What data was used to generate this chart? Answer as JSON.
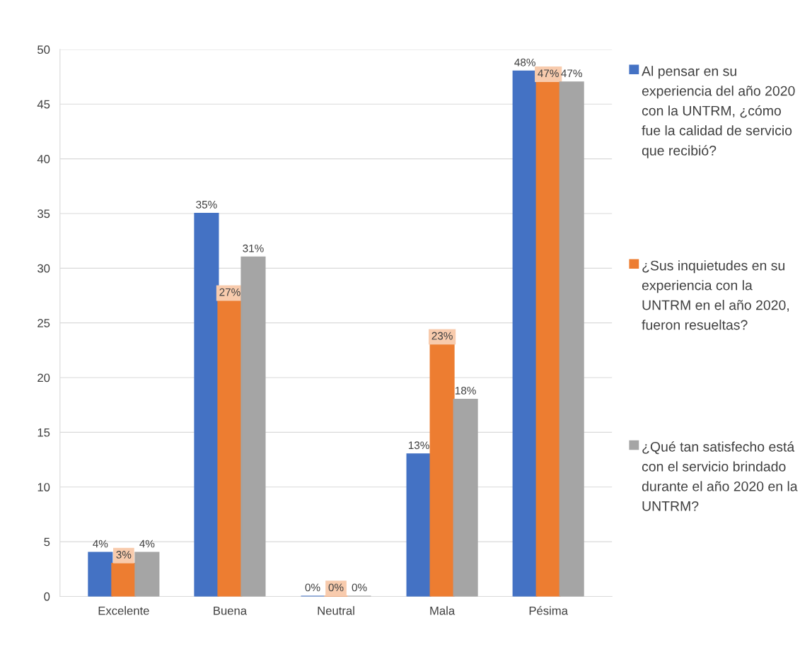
{
  "chart_data": {
    "type": "bar",
    "categories": [
      "Excelente",
      "Buena",
      "Neutral",
      "Mala",
      "Pésima"
    ],
    "series": [
      {
        "name": "Al pensar en su experiencia del año 2020 con la UNTRM, ¿cómo fue la calidad de servicio que recibió?",
        "color": "#4472c4",
        "values": [
          4,
          35,
          0,
          13,
          48
        ],
        "value_labels": [
          "4%",
          "35%",
          "0%",
          "13%",
          "48%"
        ]
      },
      {
        "name": "¿Sus inquietudes en su experiencia con la UNTRM en el año 2020, fueron resueltas?",
        "color": "#ed7d31",
        "values": [
          3,
          27,
          0,
          23,
          47
        ],
        "value_labels": [
          "3%",
          "27%",
          "0%",
          "23%",
          "47%"
        ]
      },
      {
        "name": "¿Qué tan satisfecho está con el servicio brindado durante el año 2020 en la UNTRM?",
        "color": "#a5a5a5",
        "values": [
          4,
          31,
          0,
          18,
          47
        ],
        "value_labels": [
          "4%",
          "31%",
          "0%",
          "18%",
          "47%"
        ]
      }
    ],
    "ylim": [
      0,
      50
    ],
    "yticks": [
      0,
      5,
      10,
      15,
      20,
      25,
      30,
      35,
      40,
      45,
      50
    ],
    "grid": "y",
    "legend": "right"
  }
}
